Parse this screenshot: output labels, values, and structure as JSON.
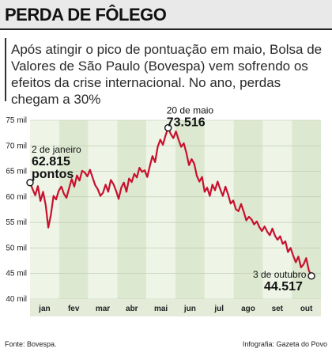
{
  "header": {
    "title": "PERDA DE FÔLEGO",
    "subtitle": "Após atingir o pico de pontuação em maio, Bolsa de Valores de São Paulo (Bovespa) vem sofrendo os efeitos da crise internacional. No ano, perdas chegam a 30%"
  },
  "footer": {
    "source": "Fonte: Bovespa.",
    "credit": "Infografia: Gazeta do Povo"
  },
  "colors": {
    "line": "#c8102e",
    "band_light": "#eef4e6",
    "band_dark": "#dde8d0",
    "header_bg": "#e9e9e9"
  },
  "chart_data": {
    "type": "line",
    "y_axis": {
      "min": 40,
      "max": 75,
      "ticks": [
        40,
        45,
        50,
        55,
        60,
        65,
        70,
        75
      ],
      "tick_labels": [
        "40 mil",
        "45 mil",
        "50 mil",
        "55 mil",
        "60 mil",
        "65 mil",
        "70 mil",
        "75 mil"
      ]
    },
    "months": [
      "jan",
      "fev",
      "mar",
      "abr",
      "mai",
      "jun",
      "jul",
      "ago",
      "set",
      "out"
    ],
    "series": [
      {
        "values": [
          62.8,
          61.5,
          60.3,
          62.1,
          59.2,
          61.0,
          58.4,
          54.0,
          56.5,
          60.2,
          59.5,
          61.2,
          62.0,
          60.6,
          59.8,
          61.7,
          63.5,
          62.0,
          64.2,
          63.2,
          65.1,
          64.8,
          64.0,
          65.3,
          63.8,
          62.3,
          61.5,
          60.2,
          60.8,
          62.4,
          61.0,
          63.3,
          62.5,
          61.2,
          59.6,
          61.8,
          62.8,
          61.0,
          63.6,
          62.9,
          64.5,
          63.8,
          65.7,
          64.9,
          65.2,
          63.9,
          66.1,
          68.0,
          66.8,
          69.8,
          71.2,
          70.2,
          72.0,
          73.516,
          72.3,
          71.5,
          72.8,
          71.2,
          69.8,
          70.5,
          68.6,
          66.2,
          67.4,
          66.5,
          64.1,
          63.0,
          63.9,
          61.0,
          61.8,
          60.2,
          62.4,
          61.3,
          63.0,
          61.5,
          60.2,
          62.0,
          60.5,
          58.7,
          59.3,
          57.6,
          57.2,
          58.6,
          57.1,
          55.4,
          56.1,
          55.6,
          54.6,
          55.2,
          54.1,
          53.3,
          54.2,
          53.2,
          52.5,
          53.8,
          52.4,
          51.6,
          52.3,
          50.8,
          51.3,
          49.2,
          50.0,
          48.5,
          47.2,
          48.3,
          46.2,
          46.8,
          48.0,
          45.6,
          44.517
        ]
      }
    ],
    "annotations": [
      {
        "label": "2 de janeiro",
        "value_text": "62.815",
        "extra": "pontos",
        "x_index": 0
      },
      {
        "label": "20 de maio",
        "value_text": "73.516",
        "x_index": 53
      },
      {
        "label": "3 de outubro",
        "value_text": "44.517",
        "x_index": 108
      }
    ],
    "grid": true
  }
}
